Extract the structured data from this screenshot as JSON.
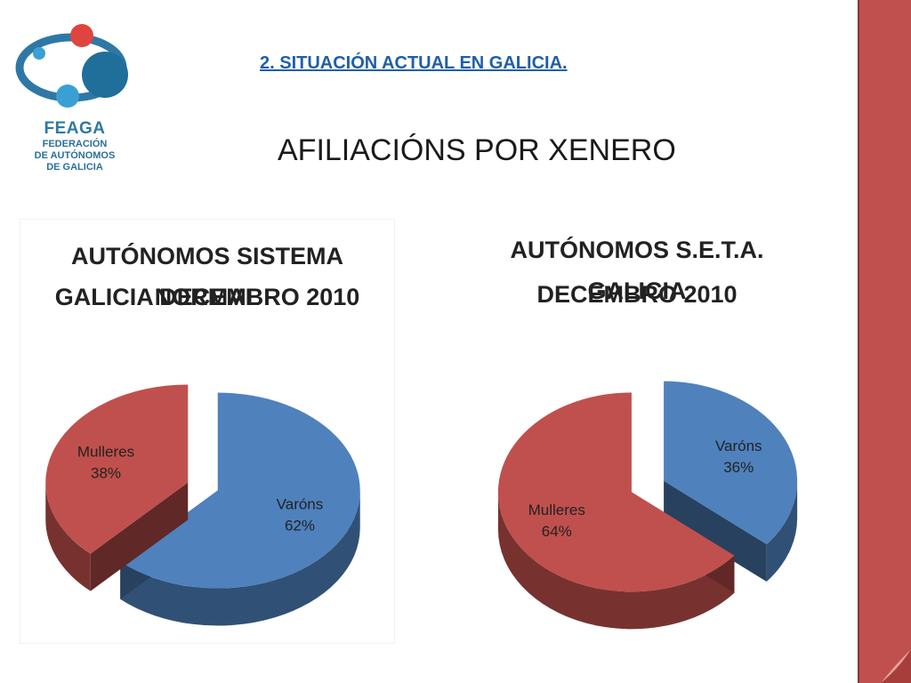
{
  "header": {
    "section_title": "2. SITUACIÓN ACTUAL EN GALICIA.",
    "main_title": "AFILIACIÓNS POR XENERO"
  },
  "logo": {
    "name": "FEAGA",
    "subtitle_lines": [
      "FEDERACIÓN",
      "DE AUTÓNOMOS",
      "DE GALICIA"
    ]
  },
  "colors": {
    "red": "#c0504d",
    "blue": "#4f81bd",
    "sidebar": "#c0504d",
    "section_title": "#1f5fa8"
  },
  "chart_data": [
    {
      "type": "pie",
      "title_lines": [
        "AUTÓNOMOS SISTEMA NORMAL",
        "GALICIA DECEMBRO 2010"
      ],
      "categories": [
        "Varóns",
        "Mulleres"
      ],
      "values": [
        62,
        38
      ],
      "labels": [
        "62%",
        "38%"
      ],
      "colors": [
        "#4f81bd",
        "#c0504d"
      ],
      "exploded": true,
      "style": "3d"
    },
    {
      "type": "pie",
      "title_lines": [
        "AUTÓNOMOS S.E.T.A. GALICIA",
        "DECEMBRO 2010"
      ],
      "categories": [
        "Varóns",
        "Mulleres"
      ],
      "values": [
        36,
        64
      ],
      "labels": [
        "36%",
        "64%"
      ],
      "colors": [
        "#4f81bd",
        "#c0504d"
      ],
      "exploded": true,
      "style": "3d"
    }
  ]
}
